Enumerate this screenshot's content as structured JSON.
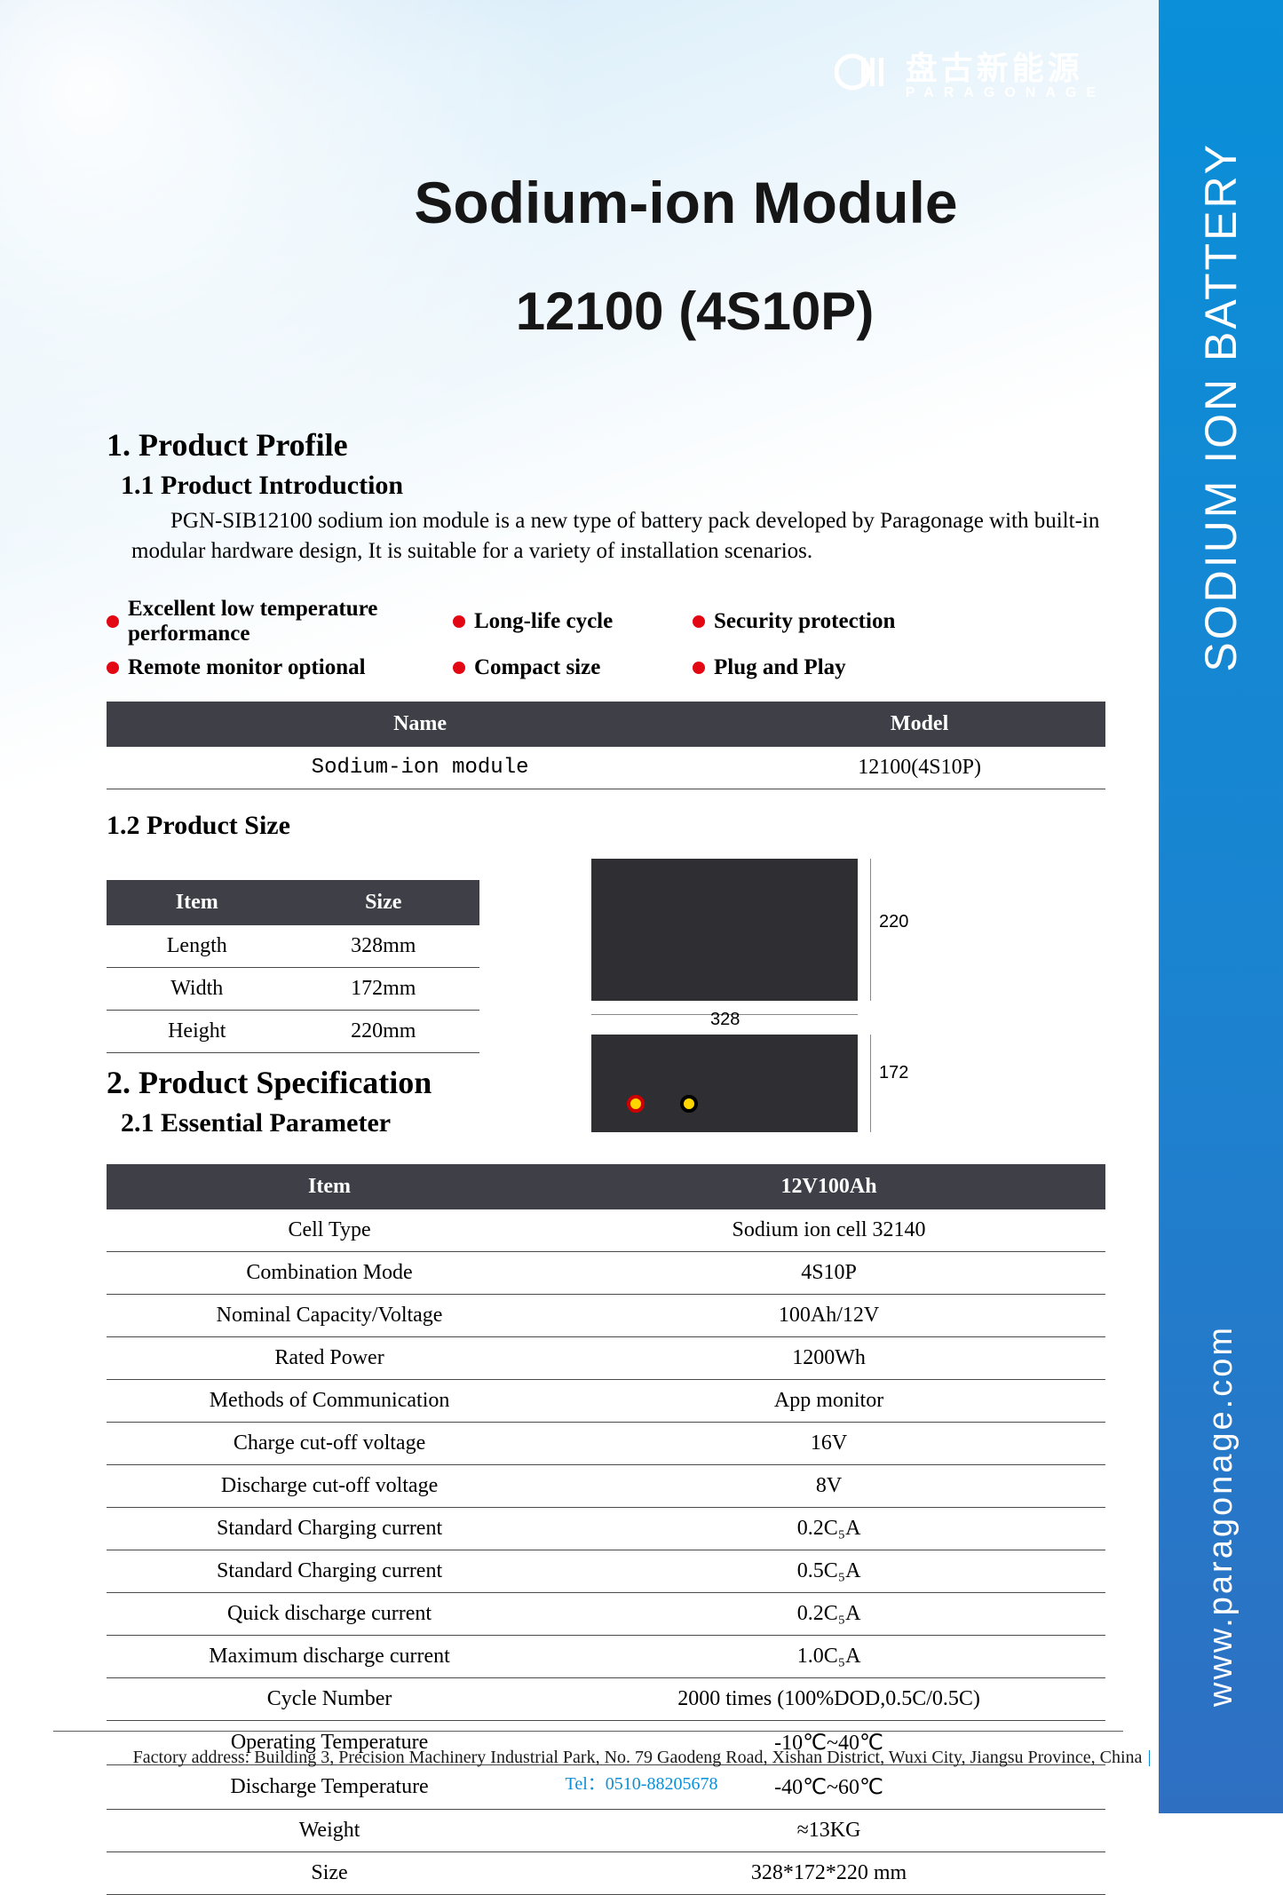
{
  "logo": {
    "cn": "盘古新能源",
    "en": "PARAGONAGE"
  },
  "side": {
    "main": "SODIUM ION BATTERY",
    "url": "www.paragonage.com"
  },
  "title": {
    "line1": "Sodium-ion Module",
    "line2": "12100  (4S10P)"
  },
  "s1": {
    "heading": "1.  Product  Profile",
    "sub": "1.1 Product  Introduction",
    "para": "PGN-SIB12100 sodium ion module is a new type of battery pack developed by Paragonage with built-in modular hardware design, It is suitable for a variety of installation scenarios.",
    "bullets": [
      "Excellent low temperature performance",
      "Long-life cycle",
      "Security protection",
      "Remote monitor optional",
      "Compact size",
      "Plug and Play"
    ],
    "bullet_dot_color": "#e30613",
    "nm_cols": [
      "Name",
      "Model"
    ],
    "nm_row": [
      "Sodium-ion module",
      "12100(4S10P)"
    ],
    "size_heading": "1.2 Product Size",
    "size_cols": [
      "Item",
      "Size"
    ],
    "size_rows": [
      [
        "Length",
        "328mm"
      ],
      [
        "Width",
        "172mm"
      ],
      [
        "Height",
        "220mm"
      ]
    ],
    "dims": {
      "w": "328",
      "h": "220",
      "d": "172"
    }
  },
  "s2": {
    "heading": "2.  Product Specification",
    "sub": "2.1 Essential Parameter",
    "cols": [
      "Item",
      "12V100Ah"
    ],
    "rows": [
      [
        "Cell Type",
        "Sodium ion cell 32140"
      ],
      [
        "Combination Mode",
        "4S10P"
      ],
      [
        "Nominal Capacity/Voltage",
        "100Ah/12V"
      ],
      [
        "Rated Power",
        "1200Wh"
      ],
      [
        "Methods of Communication",
        "App monitor"
      ],
      [
        "Charge cut-off voltage",
        "16V"
      ],
      [
        "Discharge cut-off voltage",
        "8V"
      ],
      [
        "Standard Charging current",
        "0.2C₅A"
      ],
      [
        "Standard Charging current",
        "0.5C₅A"
      ],
      [
        "Quick discharge current",
        "0.2C₅A"
      ],
      [
        "Maximum discharge current",
        "1.0C₅A"
      ],
      [
        "Cycle Number",
        "2000 times (100%DOD,0.5C/0.5C)"
      ],
      [
        "Operating Temperature",
        "-10℃~40℃"
      ],
      [
        "Discharge Temperature",
        "-40℃~60℃"
      ],
      [
        "Weight",
        "≈13KG"
      ],
      [
        "Size",
        "328*172*220 mm"
      ]
    ]
  },
  "footer": {
    "addr": "Factory address: Building 3, Precision Machinery Industrial Park, No. 79 Gaodeng Road, Xishan District, Wuxi City, Jiangsu Province, China",
    "tel_label": "Tel：",
    "tel": "0510-88205678"
  },
  "colors": {
    "header_bg": "#3f3f48",
    "header_fg": "#ffffff",
    "row_border": "#4a4a4a",
    "strip": "#0a8fd8"
  }
}
